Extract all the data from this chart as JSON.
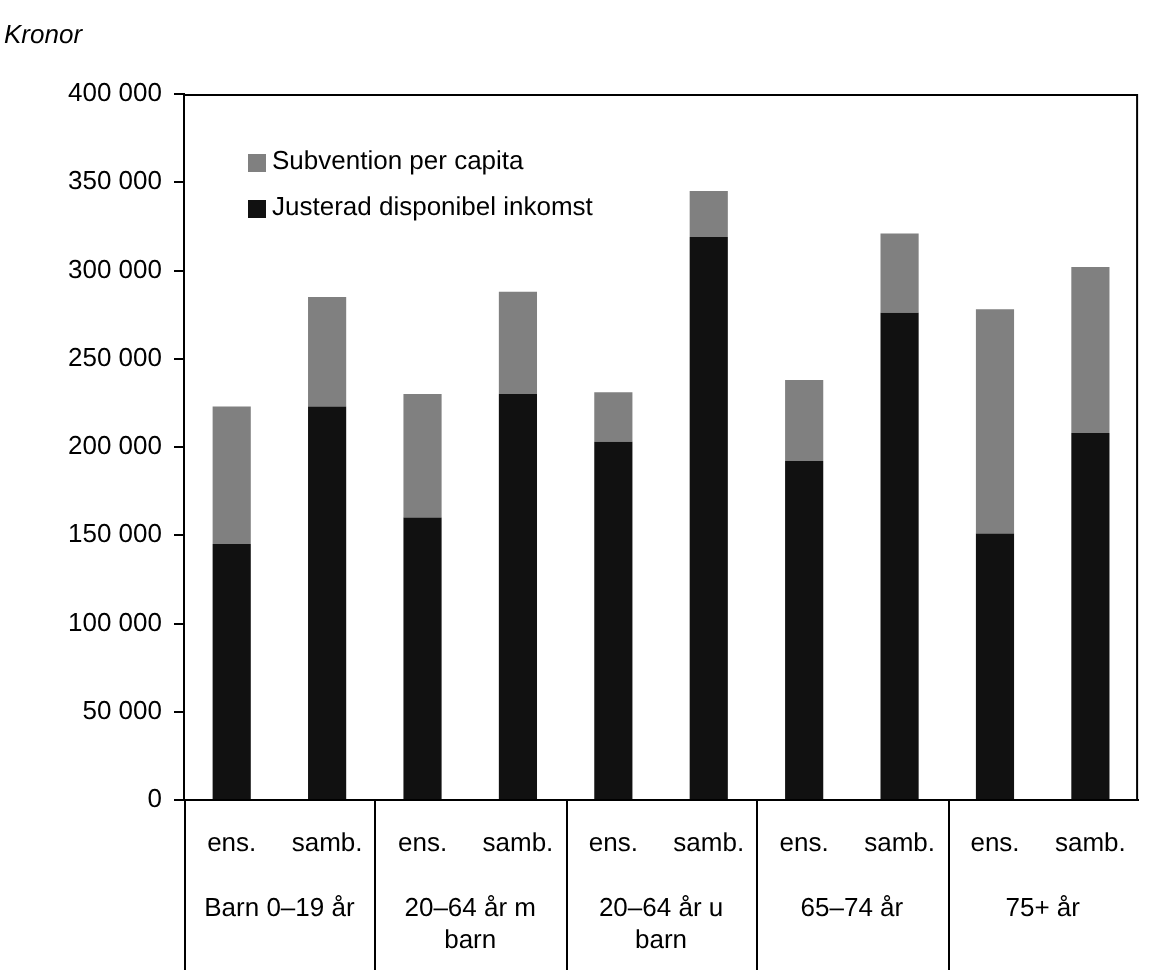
{
  "chart_data": {
    "type": "bar",
    "stacked": true,
    "ylabel": "Kronor",
    "categories": [
      "ens.",
      "samb.",
      "ens.",
      "samb.",
      "ens.",
      "samb.",
      "ens.",
      "samb.",
      "ens.",
      "samb."
    ],
    "annotations": [
      "Barn 0–19 år",
      "20–64 år m barn",
      "20–64 år u barn",
      "65–74 år",
      "75+ år"
    ],
    "series": [
      {
        "name": "Justerad disponibel inkomst",
        "color": "#111111",
        "values": [
          145000,
          223000,
          160000,
          230000,
          203000,
          319000,
          192000,
          276000,
          151000,
          208000
        ]
      },
      {
        "name": "Subvention per capita",
        "color": "#808080",
        "values": [
          78000,
          62000,
          70000,
          58000,
          28000,
          26000,
          46000,
          45000,
          127000,
          94000
        ]
      }
    ],
    "ylim": [
      0,
      400000
    ],
    "yticks": [
      {
        "value": 0,
        "label": "0"
      },
      {
        "value": 50000,
        "label": "50 000"
      },
      {
        "value": 100000,
        "label": "100 000"
      },
      {
        "value": 150000,
        "label": "150 000"
      },
      {
        "value": 200000,
        "label": "200 000"
      },
      {
        "value": 250000,
        "label": "250 000"
      },
      {
        "value": 300000,
        "label": "300 000"
      },
      {
        "value": 350000,
        "label": "350 000"
      },
      {
        "value": 400000,
        "label": "400 000"
      }
    ],
    "grid": false,
    "legend": "top left"
  }
}
